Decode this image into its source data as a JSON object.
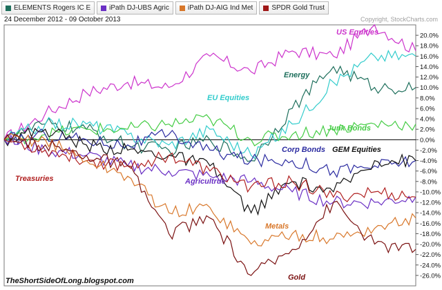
{
  "legend": [
    {
      "label": "ELEMENTS Rogers IC E",
      "color": "#1e6f5c"
    },
    {
      "label": "iPath DJ-UBS Agric",
      "color": "#6a2fc4"
    },
    {
      "label": "iPath DJ-AIG Ind Met",
      "color": "#d8772a"
    },
    {
      "label": "SPDR Gold Trust",
      "color": "#a01818"
    }
  ],
  "copyright": "Copyright, StockCharts.com",
  "date_range": "24 December 2012 - 09 October 2013",
  "watermark": "TheShortSideOfLong.blogspot.com",
  "chart_data": {
    "type": "line",
    "x": [
      "2012-12-24",
      "2013-01-15",
      "2013-02-15",
      "2013-03-15",
      "2013-04-15",
      "2013-05-15",
      "2013-06-15",
      "2013-07-15",
      "2013-08-15",
      "2013-09-15",
      "2013-10-09"
    ],
    "ylim": [
      -28,
      22
    ],
    "yticks": [
      20,
      18,
      16,
      14,
      12,
      10,
      8,
      6,
      4,
      2,
      0,
      -2,
      -4,
      -6,
      -8,
      -10,
      -12,
      -14,
      -16,
      -18,
      -20,
      -22,
      -24,
      -26
    ],
    "ytick_labels": [
      "20.0%",
      "18.0%",
      "16.0%",
      "14.0%",
      "12.0%",
      "10.0%",
      "8.0%",
      "6.0%",
      "4.0%",
      "2.0%",
      "0.0%",
      "-2.0%",
      "-4.0%",
      "-6.0%",
      "-8.0%",
      "-10.0%",
      "-12.0%",
      "-14.0%",
      "-16.0%",
      "-18.0%",
      "-20.0%",
      "-22.0%",
      "-24.0%",
      "-26.0%"
    ],
    "grid": false,
    "series": [
      {
        "name": "US Equities",
        "color": "#cc33cc",
        "values": [
          0,
          5,
          9,
          11,
          10,
          16,
          13,
          17,
          16,
          22,
          17
        ]
      },
      {
        "name": "Energy",
        "color": "#1e6f5c",
        "values": [
          0,
          3,
          2,
          -1,
          -2,
          0,
          -4,
          6,
          14,
          10,
          10
        ]
      },
      {
        "name": "EU Equities",
        "color": "#33cccc",
        "values": [
          0,
          3,
          3,
          1,
          -1,
          2,
          -3,
          3,
          11,
          16,
          16
        ]
      },
      {
        "name": "Junk Bonds",
        "color": "#44cc44",
        "values": [
          0,
          1,
          2,
          2,
          3,
          4,
          0,
          1,
          2,
          3,
          3
        ]
      },
      {
        "name": "Corp Bonds",
        "color": "#2a2aa0",
        "values": [
          0,
          1,
          0,
          -1,
          1,
          -2,
          -4,
          -4,
          -6,
          -5,
          -4
        ]
      },
      {
        "name": "GEM Equities",
        "color": "#111111",
        "values": [
          0,
          2,
          -1,
          -2,
          -3,
          -5,
          -14,
          -8,
          -10,
          -4,
          -4
        ]
      },
      {
        "name": "Agricultrue",
        "color": "#6a2fc4",
        "values": [
          0,
          -2,
          -3,
          -5,
          -6,
          -7,
          -8,
          -10,
          -12,
          -12,
          -11
        ]
      },
      {
        "name": "Treasuries",
        "color": "#b02020",
        "values": [
          0,
          -2,
          -4,
          -5,
          -3,
          -6,
          -9,
          -8,
          -11,
          -10,
          -11
        ]
      },
      {
        "name": "Metals",
        "color": "#d8772a",
        "values": [
          0,
          0,
          -4,
          -7,
          -14,
          -13,
          -20,
          -18,
          -19,
          -17,
          -15
        ]
      },
      {
        "name": "Gold",
        "color": "#7a1010",
        "values": [
          0,
          -1,
          -3,
          -5,
          -18,
          -15,
          -26,
          -21,
          -12,
          -20,
          -21
        ]
      }
    ],
    "annotations": [
      {
        "text": "US Equities",
        "color": "#cc33cc"
      },
      {
        "text": "Energy",
        "color": "#1e6f5c"
      },
      {
        "text": "EU Equities",
        "color": "#33cccc"
      },
      {
        "text": "Junk Bonds",
        "color": "#44cc44"
      },
      {
        "text": "Corp Bonds",
        "color": "#2a2aa0"
      },
      {
        "text": "GEM Equities",
        "color": "#111111"
      },
      {
        "text": "Treasuries",
        "color": "#b02020"
      },
      {
        "text": "Agricultrue",
        "color": "#6a2fc4"
      },
      {
        "text": "Metals",
        "color": "#d8772a"
      },
      {
        "text": "Gold",
        "color": "#7a1010"
      }
    ]
  }
}
